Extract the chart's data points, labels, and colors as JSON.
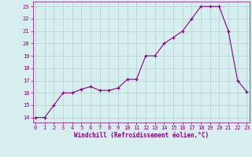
{
  "x_data": [
    0,
    1,
    2,
    3,
    4,
    5,
    6,
    7,
    8,
    9,
    10,
    11,
    12,
    13,
    14,
    15,
    16,
    17,
    18,
    19,
    20,
    21,
    22,
    23
  ],
  "y_data": [
    14,
    14,
    15,
    16,
    16,
    16.3,
    16.5,
    16.2,
    16.2,
    16.4,
    17.1,
    17.1,
    19.0,
    19.0,
    20.0,
    20.5,
    21.0,
    22.0,
    23.0,
    23.0,
    23.0,
    21.0,
    17.0,
    16.1
  ],
  "ylim_min": 13.6,
  "ylim_max": 23.4,
  "xlim_min": -0.3,
  "xlim_max": 23.3,
  "yticks": [
    14,
    15,
    16,
    17,
    18,
    19,
    20,
    21,
    22,
    23
  ],
  "xticks": [
    0,
    1,
    2,
    3,
    4,
    5,
    6,
    7,
    8,
    9,
    10,
    11,
    12,
    13,
    14,
    15,
    16,
    17,
    18,
    19,
    20,
    21,
    22,
    23
  ],
  "line_color": "#880088",
  "bg_color": "#d6eeee",
  "grid_color": "#b0d0d0",
  "xlabel": "Windchill (Refroidissement éolien,°C)",
  "tick_color": "#880088",
  "spine_color": "#880088",
  "tick_fontsize": 5,
  "xlabel_fontsize": 5.5,
  "linewidth": 0.8,
  "markersize": 3.5,
  "marker": "+"
}
